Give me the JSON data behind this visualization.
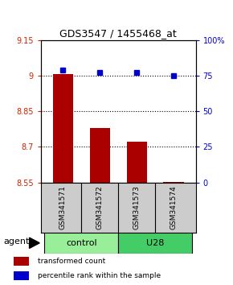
{
  "title": "GDS3547 / 1455468_at",
  "samples": [
    "GSM341571",
    "GSM341572",
    "GSM341573",
    "GSM341574"
  ],
  "red_values": [
    9.005,
    8.78,
    8.72,
    8.553
  ],
  "blue_values": [
    79,
    77,
    77,
    75
  ],
  "ylim_left": [
    8.55,
    9.15
  ],
  "ylim_right": [
    0,
    100
  ],
  "yticks_left": [
    8.55,
    8.7,
    8.85,
    9.0,
    9.15
  ],
  "yticks_right": [
    0,
    25,
    50,
    75,
    100
  ],
  "ytick_labels_left": [
    "8.55",
    "8.7",
    "8.85",
    "9",
    "9.15"
  ],
  "ytick_labels_right": [
    "0",
    "25",
    "50",
    "75",
    "100%"
  ],
  "hlines": [
    9.0,
    8.85,
    8.7
  ],
  "bar_color": "#AA0000",
  "dot_color": "#0000CC",
  "bar_bottom": 8.55,
  "legend_red": "transformed count",
  "legend_blue": "percentile rank within the sample",
  "agent_label": "agent",
  "background_plot": "#ffffff",
  "sample_bg": "#cccccc",
  "group_control_color": "#99EE99",
  "group_u28_color": "#44CC66",
  "bar_width": 0.55,
  "group_bounds": [
    [
      -0.5,
      1.5,
      "control",
      "#99EE99"
    ],
    [
      1.5,
      3.5,
      "U28",
      "#44CC66"
    ]
  ]
}
